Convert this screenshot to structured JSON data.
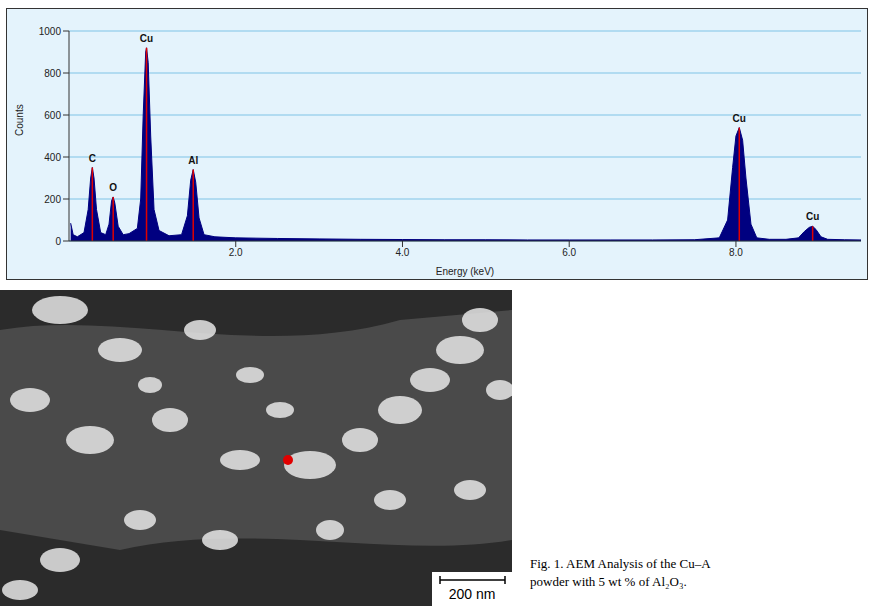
{
  "chart_data": {
    "type": "area",
    "x_label": "Energy (keV)",
    "y_label": "Counts",
    "x": [
      0.02,
      0.05,
      0.1,
      0.18,
      0.23,
      0.26,
      0.28,
      0.3,
      0.33,
      0.38,
      0.44,
      0.48,
      0.51,
      0.53,
      0.55,
      0.59,
      0.65,
      0.72,
      0.78,
      0.82,
      0.86,
      0.89,
      0.92,
      0.93,
      0.95,
      0.98,
      1.02,
      1.08,
      1.2,
      1.35,
      1.42,
      1.46,
      1.49,
      1.52,
      1.56,
      1.62,
      1.75,
      2.0,
      2.5,
      3.0,
      3.5,
      4.0,
      4.5,
      5.0,
      5.5,
      6.0,
      6.5,
      7.0,
      7.5,
      7.8,
      7.9,
      7.96,
      8.0,
      8.04,
      8.08,
      8.12,
      8.18,
      8.25,
      8.4,
      8.6,
      8.75,
      8.82,
      8.88,
      8.92,
      8.96,
      9.02,
      9.1,
      9.3,
      9.5
    ],
    "values": [
      85,
      30,
      20,
      40,
      150,
      300,
      350,
      300,
      150,
      40,
      30,
      80,
      190,
      210,
      180,
      70,
      30,
      35,
      50,
      60,
      200,
      600,
      900,
      920,
      850,
      500,
      150,
      50,
      25,
      30,
      120,
      290,
      340,
      280,
      110,
      30,
      20,
      15,
      12,
      10,
      8,
      7,
      6,
      6,
      5,
      5,
      5,
      5,
      6,
      15,
      100,
      350,
      500,
      540,
      480,
      300,
      80,
      15,
      8,
      8,
      15,
      45,
      65,
      70,
      55,
      20,
      8,
      6,
      5
    ],
    "color": "#000080",
    "xlim": [
      0,
      9.5
    ],
    "xticks": [
      {
        "value": 2,
        "label": "2.0"
      },
      {
        "value": 4,
        "label": "4.0"
      },
      {
        "value": 6,
        "label": "6.0"
      },
      {
        "value": 8,
        "label": "8.0"
      }
    ],
    "ylim": [
      0,
      1000
    ],
    "yticks": [
      0,
      200,
      400,
      600,
      800,
      1000
    ],
    "grid": true,
    "annotations": [
      {
        "text": "C",
        "x": 0.28,
        "y": 350
      },
      {
        "text": "O",
        "x": 0.53,
        "y": 210
      },
      {
        "text": "Cu",
        "x": 0.93,
        "y": 920
      },
      {
        "text": "Al",
        "x": 1.49,
        "y": 340
      },
      {
        "text": "Cu",
        "x": 8.04,
        "y": 540
      },
      {
        "text": "Cu",
        "x": 8.92,
        "y": 70
      }
    ]
  },
  "image": {
    "scale_bar": "200 nm"
  },
  "caption": [
    "Fig. 1. AEM Analysis of the Cu–A",
    "powder with 5 wt % of Al₂O₃."
  ]
}
